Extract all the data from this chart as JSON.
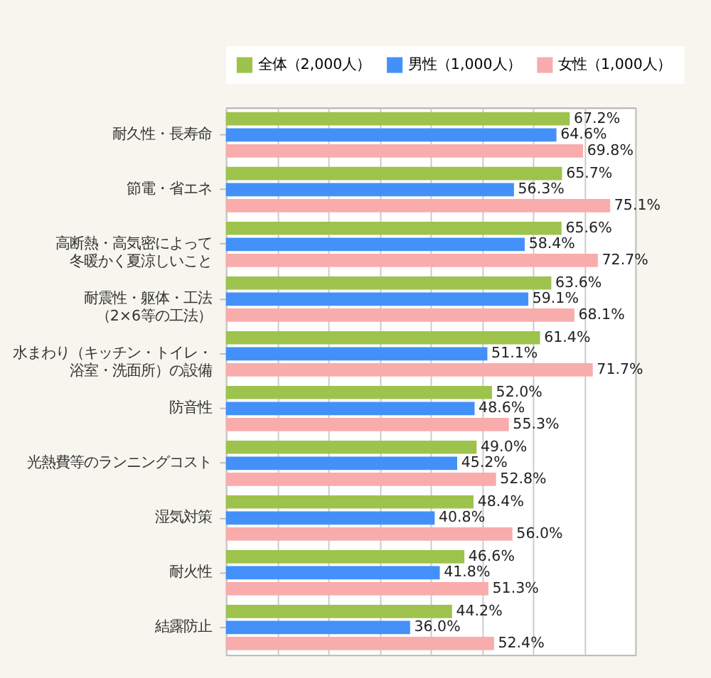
{
  "chart_data": {
    "type": "bar",
    "orientation": "horizontal",
    "categories": [
      "耐久性・長寿命",
      "節電・省エネ",
      "高断熱・高気密によって冬暖かく夏涼しいこと",
      "耐震性・躯体・工法（2×6等の工法）",
      "水まわり（キッチン・トイレ・浴室・洗面所）の設備",
      "防音性",
      "光熱費等のランニングコスト",
      "湿気対策",
      "耐火性",
      "結露防止"
    ],
    "series": [
      {
        "name": "全体（2,000人）",
        "color": "#9dc34d",
        "values": [
          67.2,
          65.7,
          65.6,
          63.6,
          61.4,
          52.0,
          49.0,
          48.4,
          46.6,
          44.2
        ],
        "value_labels": [
          "67.2%",
          "65.7%",
          "65.6%",
          "63.6%",
          "61.4%",
          "52.0%",
          "49.0%",
          "48.4%",
          "46.6%",
          "44.2%"
        ]
      },
      {
        "name": "男性（1,000人）",
        "color": "#4391f8",
        "values": [
          64.6,
          56.3,
          58.4,
          59.1,
          51.1,
          48.6,
          45.2,
          40.8,
          41.8,
          36.0
        ],
        "value_labels": [
          "64.6%",
          "56.3%",
          "58.4%",
          "59.1%",
          "51.1%",
          "48.6%",
          "45.2%",
          "40.8%",
          "41.8%",
          "36.0%"
        ]
      },
      {
        "name": "女性（1,000人）",
        "color": "#f9acac",
        "values": [
          69.8,
          75.1,
          72.7,
          68.1,
          71.7,
          55.3,
          52.8,
          56.0,
          51.3,
          52.4
        ],
        "value_labels": [
          "69.8%",
          "75.1%",
          "72.7%",
          "68.1%",
          "71.7%",
          "55.3%",
          "52.8%",
          "56.0%",
          "51.3%",
          "52.4%"
        ]
      }
    ],
    "xlim": [
      0,
      80
    ],
    "xticks": [
      {
        "value": 0,
        "label": null
      },
      {
        "value": 10,
        "label": null
      },
      {
        "value": 20,
        "label": null
      },
      {
        "value": 30,
        "label": null
      },
      {
        "value": 40,
        "label": null
      },
      {
        "value": 50,
        "label": null
      },
      {
        "value": 60,
        "label": null
      },
      {
        "value": 70,
        "label": null
      },
      {
        "value": 80,
        "label": null
      }
    ],
    "tick_labels": "y",
    "grid": "x",
    "legend": "top"
  }
}
